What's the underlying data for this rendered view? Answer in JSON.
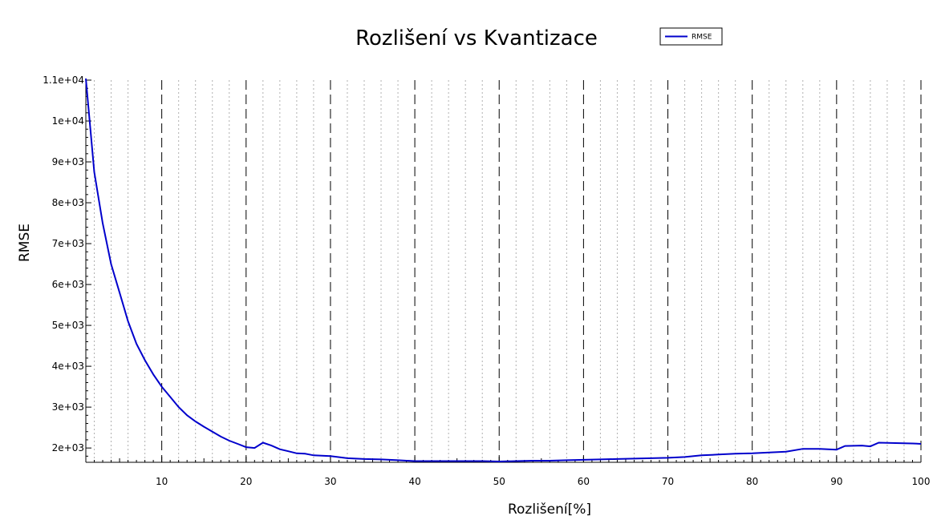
{
  "chart_data": {
    "type": "line",
    "title": "Rozlišení vs Kvantizace",
    "xlabel": "Rozlišení[%]",
    "ylabel": "RMSE",
    "xlim": [
      1,
      100
    ],
    "ylim": [
      1650,
      11000
    ],
    "x_major_ticks": [
      10,
      20,
      30,
      40,
      50,
      60,
      70,
      80,
      90,
      100
    ],
    "x_major_tick_labels": [
      "10",
      "20",
      "30",
      "40",
      "50",
      "60",
      "70",
      "80",
      "90",
      "100"
    ],
    "y_ticks": [
      2000,
      3000,
      4000,
      5000,
      6000,
      7000,
      8000,
      9000,
      10000,
      11000
    ],
    "y_tick_labels": [
      "2e+03",
      "3e+03",
      "4e+03",
      "5e+03",
      "6e+03",
      "7e+03",
      "8e+03",
      "9e+03",
      "1e+04",
      "1.1e+04"
    ],
    "grid": {
      "major_x": "dashed",
      "minor_x": "dotted",
      "y": "off"
    },
    "legend": {
      "position": "top-right",
      "entries": [
        {
          "label": "RMSE",
          "color": "#0000cc"
        }
      ]
    },
    "series": [
      {
        "name": "RMSE",
        "color": "#0000cc",
        "x": [
          1,
          2,
          3,
          4,
          5,
          6,
          7,
          8,
          9,
          10,
          11,
          12,
          13,
          14,
          15,
          16,
          17,
          18,
          19,
          20,
          21,
          22,
          23,
          24,
          25,
          26,
          27,
          28,
          29,
          30,
          32,
          34,
          36,
          38,
          40,
          42,
          44,
          46,
          48,
          50,
          52,
          54,
          56,
          58,
          60,
          62,
          64,
          66,
          68,
          70,
          72,
          74,
          76,
          78,
          80,
          82,
          84,
          86,
          88,
          90,
          91,
          93,
          94,
          95,
          97,
          99,
          100
        ],
        "y": [
          11100,
          8750,
          7500,
          6500,
          5800,
          5100,
          4550,
          4150,
          3800,
          3500,
          3250,
          3000,
          2800,
          2650,
          2520,
          2400,
          2280,
          2180,
          2100,
          2020,
          2000,
          2130,
          2060,
          1970,
          1920,
          1870,
          1860,
          1820,
          1810,
          1800,
          1750,
          1730,
          1720,
          1700,
          1680,
          1680,
          1680,
          1680,
          1680,
          1670,
          1680,
          1690,
          1690,
          1700,
          1710,
          1720,
          1730,
          1740,
          1750,
          1760,
          1780,
          1820,
          1840,
          1860,
          1870,
          1890,
          1910,
          1980,
          1980,
          1960,
          2050,
          2060,
          2040,
          2130,
          2120,
          2110,
          2100
        ]
      }
    ]
  }
}
